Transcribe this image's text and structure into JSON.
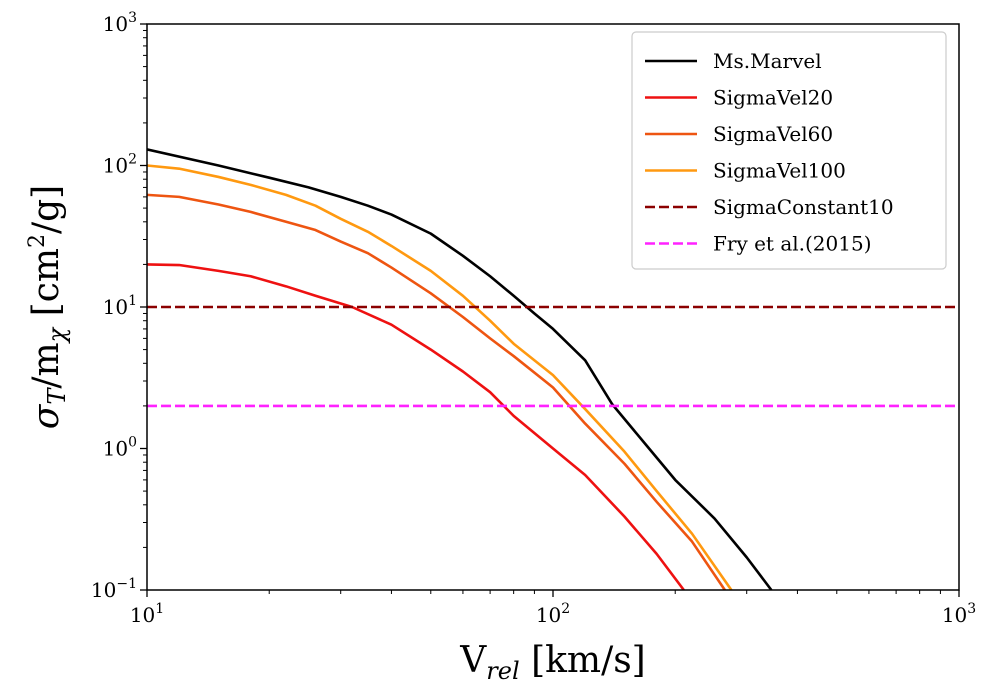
{
  "chart_data": {
    "type": "line",
    "x_scale": "log",
    "y_scale": "log",
    "xlim": [
      10,
      1000
    ],
    "ylim": [
      0.1,
      1000
    ],
    "xlabel": {
      "main": "V",
      "sub": "rel",
      "tail": " [km/s]"
    },
    "ylabel": {
      "sigma": "σ",
      "sub_T": "T",
      "mid": "/m",
      "sub_chi": "χ",
      "open": " [cm",
      "sup": "2",
      "close": "/g]"
    },
    "x_ticks": [
      {
        "value": 10,
        "base": "10",
        "exp": "1"
      },
      {
        "value": 100,
        "base": "10",
        "exp": "2"
      },
      {
        "value": 1000,
        "base": "10",
        "exp": "3"
      }
    ],
    "y_ticks": [
      {
        "value": 0.1,
        "base": "10",
        "exp": "−1"
      },
      {
        "value": 1,
        "base": "10",
        "exp": "0"
      },
      {
        "value": 10,
        "base": "10",
        "exp": "1"
      },
      {
        "value": 100,
        "base": "10",
        "exp": "2"
      },
      {
        "value": 1000,
        "base": "10",
        "exp": "3"
      }
    ],
    "legend_position": "top-right",
    "series": [
      {
        "name": "Ms.Marvel",
        "color": "#000000",
        "dash": "solid",
        "points": [
          [
            10,
            130
          ],
          [
            15,
            100
          ],
          [
            20,
            82
          ],
          [
            25,
            70
          ],
          [
            30,
            60
          ],
          [
            35,
            52
          ],
          [
            40,
            45
          ],
          [
            50,
            33
          ],
          [
            60,
            23
          ],
          [
            70,
            16.5
          ],
          [
            80,
            12
          ],
          [
            90,
            9
          ],
          [
            100,
            7
          ],
          [
            120,
            4.2
          ],
          [
            140,
            2.05
          ],
          [
            170,
            1.05
          ],
          [
            200,
            0.6
          ],
          [
            250,
            0.32
          ],
          [
            300,
            0.17
          ],
          [
            345,
            0.1
          ]
        ]
      },
      {
        "name": "SigmaVel20",
        "color": "#ee1111",
        "dash": "solid",
        "points": [
          [
            10,
            20
          ],
          [
            12,
            19.8
          ],
          [
            15,
            18
          ],
          [
            18,
            16.5
          ],
          [
            22,
            14
          ],
          [
            26,
            12
          ],
          [
            32,
            10
          ],
          [
            40,
            7.5
          ],
          [
            50,
            5
          ],
          [
            60,
            3.5
          ],
          [
            70,
            2.5
          ],
          [
            80,
            1.7
          ],
          [
            100,
            1.0
          ],
          [
            120,
            0.65
          ],
          [
            150,
            0.33
          ],
          [
            180,
            0.18
          ],
          [
            210,
            0.1
          ]
        ]
      },
      {
        "name": "SigmaVel60",
        "color": "#ee5511",
        "dash": "solid",
        "points": [
          [
            10,
            62
          ],
          [
            12,
            60
          ],
          [
            15,
            53
          ],
          [
            18,
            47
          ],
          [
            22,
            40
          ],
          [
            26,
            35
          ],
          [
            30,
            29
          ],
          [
            35,
            24
          ],
          [
            40,
            19
          ],
          [
            50,
            12.5
          ],
          [
            60,
            8.5
          ],
          [
            70,
            6
          ],
          [
            80,
            4.5
          ],
          [
            100,
            2.7
          ],
          [
            120,
            1.5
          ],
          [
            150,
            0.78
          ],
          [
            180,
            0.42
          ],
          [
            220,
            0.22
          ],
          [
            265,
            0.1
          ]
        ]
      },
      {
        "name": "SigmaVel100",
        "color": "#ff9910",
        "dash": "solid",
        "points": [
          [
            10,
            100
          ],
          [
            12,
            95
          ],
          [
            15,
            83
          ],
          [
            18,
            73
          ],
          [
            22,
            62
          ],
          [
            26,
            52
          ],
          [
            30,
            42
          ],
          [
            35,
            34
          ],
          [
            40,
            27
          ],
          [
            50,
            18
          ],
          [
            60,
            12
          ],
          [
            70,
            8
          ],
          [
            80,
            5.5
          ],
          [
            100,
            3.3
          ],
          [
            120,
            1.9
          ],
          [
            150,
            0.95
          ],
          [
            180,
            0.5
          ],
          [
            220,
            0.25
          ],
          [
            275,
            0.1
          ]
        ]
      },
      {
        "name": "SigmaConstant10",
        "color": "#8b0000",
        "dash": "dashed",
        "points": [
          [
            10,
            10
          ],
          [
            1000,
            10
          ]
        ]
      },
      {
        "name": "Fry et al.(2015)",
        "color": "#ff22ff",
        "dash": "dashed",
        "points": [
          [
            10,
            2
          ],
          [
            1000,
            2
          ]
        ]
      }
    ]
  }
}
